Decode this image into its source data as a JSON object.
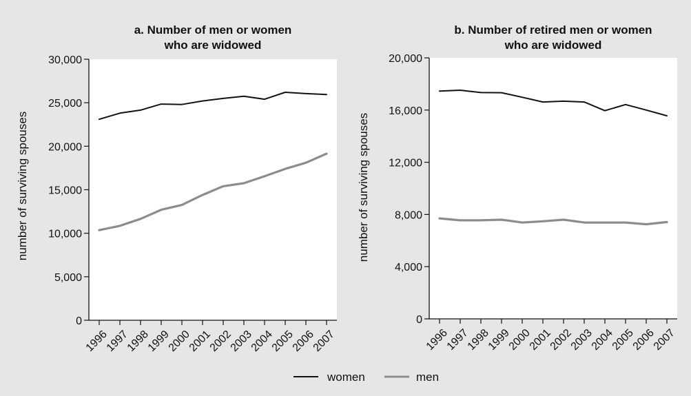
{
  "colors": {
    "background": "#e6e6e7",
    "plot_bg": "#ffffff",
    "women": "#111111",
    "men": "#8c8c8c"
  },
  "legend": {
    "placement": "bottom-center",
    "items": [
      {
        "label": "women",
        "color": "#111111"
      },
      {
        "label": "men",
        "color": "#8c8c8c"
      }
    ]
  },
  "chart_data": [
    {
      "type": "line",
      "title": [
        "a. Number of men or women",
        "who are widowed"
      ],
      "xlabel": "",
      "ylabel": "number of surviving spouses",
      "categories": [
        "1996",
        "1997",
        "1998",
        "1999",
        "2000",
        "2001",
        "2002",
        "2003",
        "2004",
        "2005",
        "2006",
        "2007"
      ],
      "ylim": [
        0,
        30000
      ],
      "yticks": [
        0,
        5000,
        10000,
        15000,
        20000,
        25000,
        30000
      ],
      "ytick_labels": [
        "0",
        "5,000",
        "10,000",
        "15,000",
        "20,000",
        "25,000",
        "30,000"
      ],
      "grid": false,
      "series": [
        {
          "name": "women",
          "values": [
            23100,
            23800,
            24150,
            24850,
            24800,
            25200,
            25500,
            25750,
            25400,
            26200,
            26050,
            25950
          ]
        },
        {
          "name": "men",
          "values": [
            10350,
            10850,
            11650,
            12700,
            13250,
            14400,
            15400,
            15750,
            16550,
            17400,
            18100,
            19150
          ]
        }
      ]
    },
    {
      "type": "line",
      "title": [
        "b. Number of retired men or women",
        "who are widowed"
      ],
      "xlabel": "",
      "ylabel": "number of surviving spouses",
      "categories": [
        "1996",
        "1997",
        "1998",
        "1999",
        "2000",
        "2001",
        "2002",
        "2003",
        "2004",
        "2005",
        "2006",
        "2007"
      ],
      "ylim": [
        0,
        20000
      ],
      "yticks": [
        0,
        4000,
        8000,
        12000,
        16000,
        20000
      ],
      "ytick_labels": [
        "0",
        "4,000",
        "8,000",
        "12,000",
        "16,000",
        "20,000"
      ],
      "grid": false,
      "series": [
        {
          "name": "women",
          "values": [
            17450,
            17520,
            17340,
            17330,
            16980,
            16620,
            16680,
            16620,
            15950,
            16420,
            16000,
            15560
          ]
        },
        {
          "name": "men",
          "values": [
            7700,
            7550,
            7550,
            7600,
            7380,
            7480,
            7600,
            7380,
            7380,
            7380,
            7250,
            7420
          ]
        }
      ]
    }
  ]
}
